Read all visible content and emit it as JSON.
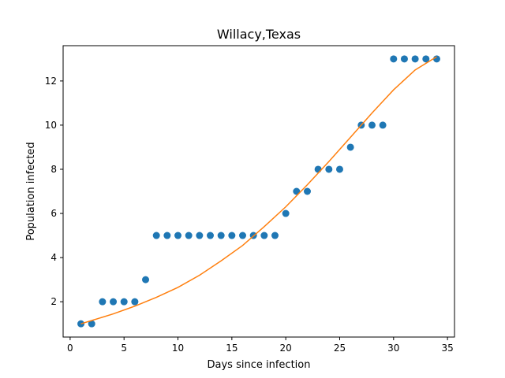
{
  "chart_data": {
    "type": "scatter",
    "title": "Willacy,Texas",
    "xlabel": "Days since infection",
    "ylabel": "Population infected",
    "xlim": [
      -0.65,
      35.65
    ],
    "ylim": [
      0.4,
      13.6
    ],
    "xticks": [
      0,
      5,
      10,
      15,
      20,
      25,
      30,
      35
    ],
    "yticks": [
      2,
      4,
      6,
      8,
      10,
      12
    ],
    "grid": false,
    "series": [
      {
        "kind": "points",
        "color": "#1f77b4",
        "x": [
          1,
          2,
          3,
          4,
          5,
          6,
          7,
          8,
          9,
          10,
          11,
          12,
          13,
          14,
          15,
          16,
          17,
          18,
          19,
          20,
          21,
          22,
          23,
          24,
          25,
          26,
          27,
          28,
          29,
          30,
          31,
          32,
          33,
          34
        ],
        "y": [
          1,
          1,
          2,
          2,
          2,
          2,
          3,
          5,
          5,
          5,
          5,
          5,
          5,
          5,
          5,
          5,
          5,
          5,
          5,
          6,
          7,
          7,
          8,
          8,
          8,
          9,
          10,
          10,
          10,
          13,
          13,
          13,
          13,
          13
        ]
      },
      {
        "kind": "line",
        "color": "#ff7f0e",
        "x": [
          1,
          2,
          4,
          6,
          8,
          10,
          12,
          14,
          16,
          18,
          20,
          22,
          24,
          26,
          28,
          30,
          32,
          34
        ],
        "y": [
          1.0,
          1.15,
          1.45,
          1.8,
          2.2,
          2.65,
          3.2,
          3.85,
          4.55,
          5.4,
          6.3,
          7.3,
          8.35,
          9.45,
          10.55,
          11.6,
          12.5,
          13.1
        ]
      }
    ]
  }
}
